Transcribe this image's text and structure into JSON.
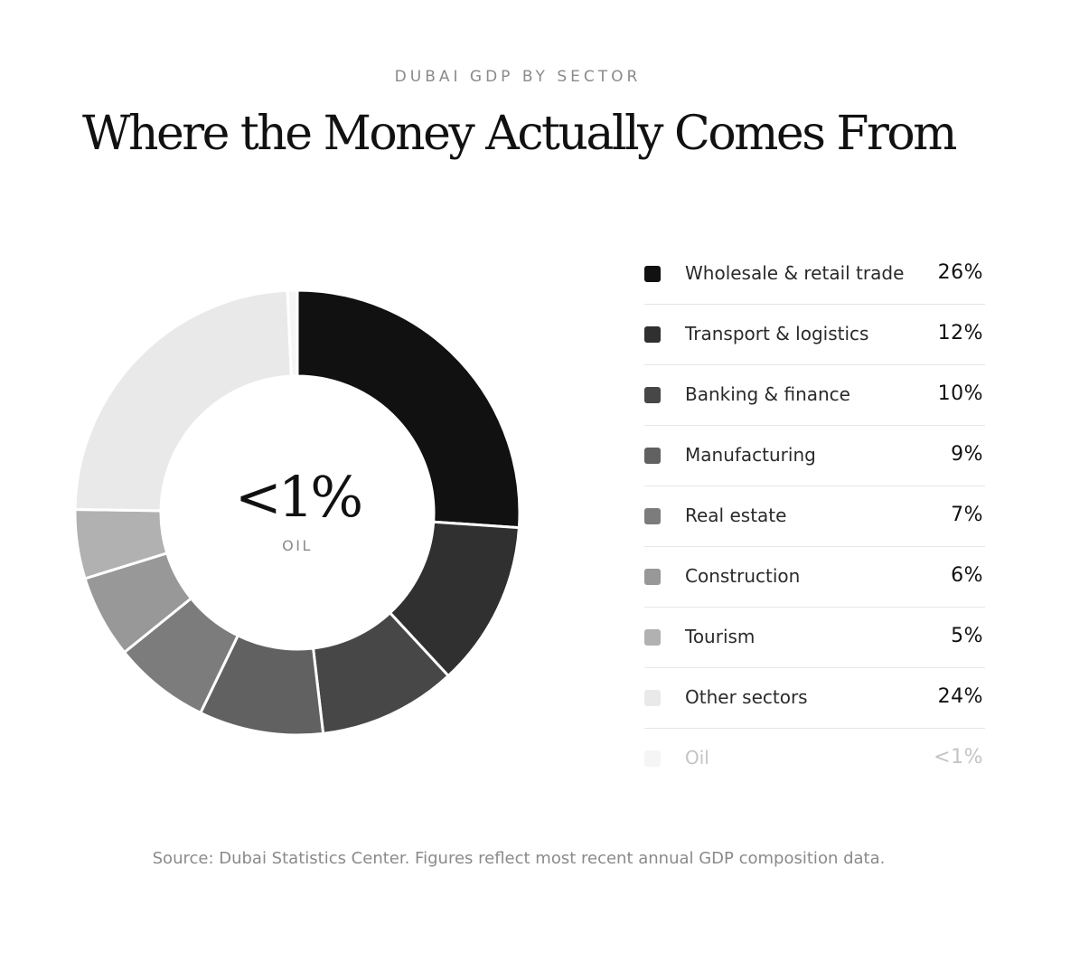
{
  "header": {
    "kicker": "DUBAI GDP BY SECTOR",
    "title": "Where the Money Actually Comes From"
  },
  "center": {
    "value": "<1%",
    "label": "OIL"
  },
  "chart_data": {
    "type": "pie",
    "style": "donut",
    "title": "Where the Money Actually Comes From",
    "subtitle": "DUBAI GDP BY SECTOR",
    "center_text": "<1%",
    "center_label": "OIL",
    "legend_position": "right",
    "slices": [
      {
        "label": "Wholesale & retail trade",
        "value": 26,
        "display": "26%",
        "color": "#111111"
      },
      {
        "label": "Transport & logistics",
        "value": 12,
        "display": "12%",
        "color": "#303030"
      },
      {
        "label": "Banking & finance",
        "value": 10,
        "display": "10%",
        "color": "#474747"
      },
      {
        "label": "Manufacturing",
        "value": 9,
        "display": "9%",
        "color": "#616161"
      },
      {
        "label": "Real estate",
        "value": 7,
        "display": "7%",
        "color": "#7c7c7c"
      },
      {
        "label": "Construction",
        "value": 6,
        "display": "6%",
        "color": "#989898"
      },
      {
        "label": "Tourism",
        "value": 5,
        "display": "5%",
        "color": "#b1b1b1"
      },
      {
        "label": "Other sectors",
        "value": 24,
        "display": "24%",
        "color": "#e9e9e9"
      },
      {
        "label": "Oil",
        "value": 0.7,
        "display": "<1%",
        "color": "#f5f5f5",
        "muted": true
      }
    ]
  },
  "footer": {
    "source": "Source: Dubai Statistics Center. Figures reflect most recent annual GDP composition data."
  }
}
